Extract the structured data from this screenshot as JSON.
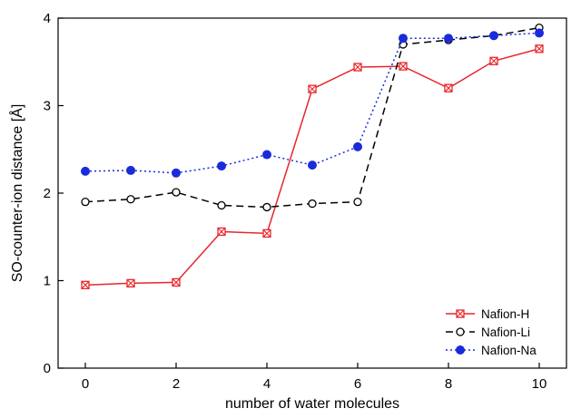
{
  "chart_data": {
    "type": "line",
    "title": "",
    "xlabel": "number of water molecules",
    "ylabel": "SO-counter-ion distance [Å]",
    "xlim": [
      -0.6,
      10.6
    ],
    "ylim": [
      0,
      4
    ],
    "x_ticks": [
      0,
      2,
      4,
      6,
      8,
      10
    ],
    "y_ticks": [
      0,
      1,
      2,
      3,
      4
    ],
    "x_tick_labels": [
      "0",
      "2",
      "4",
      "6",
      "8",
      "10"
    ],
    "y_tick_labels": [
      "0",
      "1",
      "2",
      "3",
      "4"
    ],
    "grid": false,
    "legend_position": "bottom-right",
    "x": [
      0,
      1,
      2,
      3,
      4,
      5,
      6,
      7,
      8,
      9,
      10
    ],
    "series": [
      {
        "name": "Nafion-H",
        "values": [
          0.95,
          0.97,
          0.98,
          1.56,
          1.54,
          3.19,
          3.44,
          3.45,
          3.2,
          3.51,
          3.65
        ],
        "color": "#e8262a",
        "line": "solid",
        "marker": "crossed-square"
      },
      {
        "name": "Nafion-Li",
        "values": [
          1.9,
          1.93,
          2.01,
          1.86,
          1.84,
          1.88,
          1.9,
          3.7,
          3.75,
          3.8,
          3.89
        ],
        "color": "#000000",
        "line": "dashed",
        "marker": "open-circle"
      },
      {
        "name": "Nafion-Na",
        "values": [
          2.25,
          2.26,
          2.23,
          2.31,
          2.44,
          2.32,
          2.53,
          3.77,
          3.77,
          3.8,
          3.83
        ],
        "color": "#1a2bdc",
        "line": "dotted",
        "marker": "filled-circle"
      }
    ]
  }
}
